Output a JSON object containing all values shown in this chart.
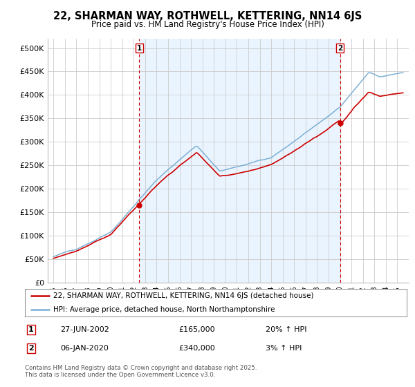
{
  "title_line1": "22, SHARMAN WAY, ROTHWELL, KETTERING, NN14 6JS",
  "title_line2": "Price paid vs. HM Land Registry's House Price Index (HPI)",
  "ylim": [
    0,
    520000
  ],
  "yticks": [
    0,
    50000,
    100000,
    150000,
    200000,
    250000,
    300000,
    350000,
    400000,
    450000,
    500000
  ],
  "ytick_labels": [
    "£0",
    "£50K",
    "£100K",
    "£150K",
    "£200K",
    "£250K",
    "£300K",
    "£350K",
    "£400K",
    "£450K",
    "£500K"
  ],
  "hpi_color": "#7bafd4",
  "price_color": "#cc0000",
  "vline_color": "#cc0000",
  "shade_color": "#ddeeff",
  "background_color": "#ffffff",
  "grid_color": "#cccccc",
  "legend_label_red": "22, SHARMAN WAY, ROTHWELL, KETTERING, NN14 6JS (detached house)",
  "legend_label_blue": "HPI: Average price, detached house, North Northamptonshire",
  "transaction1_label": "1",
  "transaction1_date": "27-JUN-2002",
  "transaction1_price": "£165,000",
  "transaction1_hpi": "20% ↑ HPI",
  "transaction1_x": 2002.49,
  "transaction1_y": 165000,
  "transaction2_label": "2",
  "transaction2_date": "06-JAN-2020",
  "transaction2_price": "£340,000",
  "transaction2_hpi": "3% ↑ HPI",
  "transaction2_x": 2020.02,
  "transaction2_y": 340000,
  "footer": "Contains HM Land Registry data © Crown copyright and database right 2025.\nThis data is licensed under the Open Government Licence v3.0.",
  "xlim": [
    1994.5,
    2026.0
  ],
  "xticks": [
    1995,
    1996,
    1997,
    1998,
    1999,
    2000,
    2001,
    2002,
    2003,
    2004,
    2005,
    2006,
    2007,
    2008,
    2009,
    2010,
    2011,
    2012,
    2013,
    2014,
    2015,
    2016,
    2017,
    2018,
    2019,
    2020,
    2021,
    2022,
    2023,
    2024,
    2025
  ]
}
